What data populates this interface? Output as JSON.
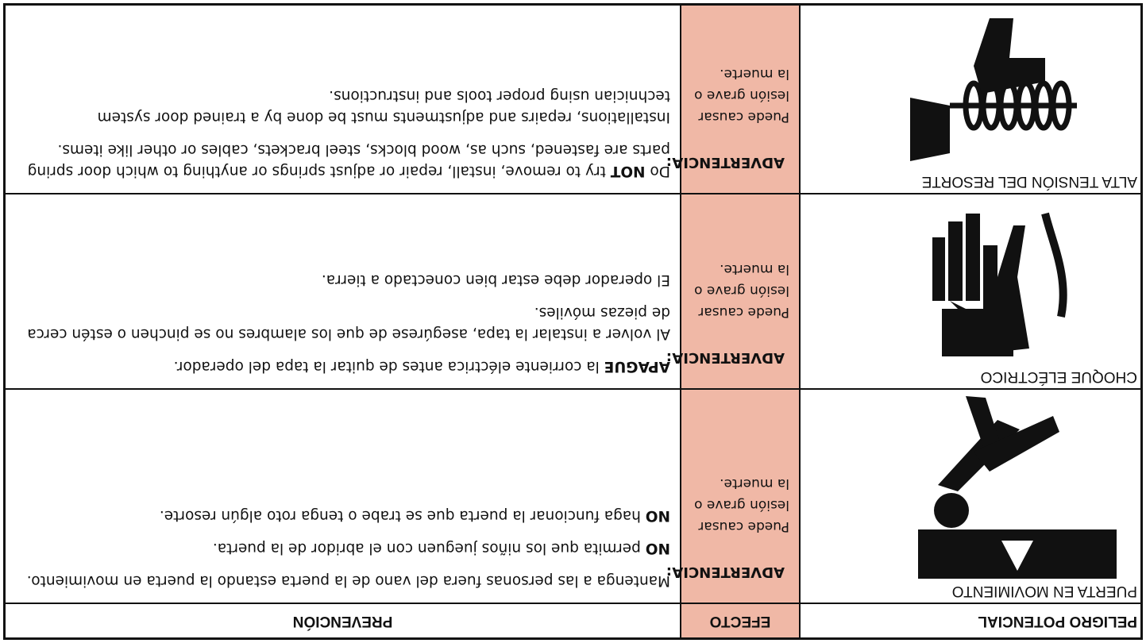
{
  "header": {
    "hazard": "PELIGRO POTENCIAL",
    "effect": "EFECTO",
    "prevention": "PREVENCIÓN"
  },
  "rows": [
    {
      "hazard": "PUERTA EN MOVIMIENTO",
      "effect_title": "ADVERTENCIA:",
      "effect_text": "Puede causar lesión grave o la muerte.",
      "prevention": [
        [
          {
            "text": "Mantenga a las personas fuera del vano de la puerta estando la puerta en movimiento."
          }
        ],
        [
          {
            "text": "NO",
            "strong": true
          },
          {
            "text": " permita que los niños jueguen con el abridor de la puerta."
          }
        ],
        [
          {
            "text": "NO",
            "strong": true
          },
          {
            "text": " haga funcionar la puerta que se trabe o tenga roto algún resorte."
          }
        ]
      ]
    },
    {
      "hazard": "CHOQUE ELÉCTRICO",
      "effect_title": "ADVERTENCIA:",
      "effect_text": "Puede causar lesión grave o la muerte.",
      "prevention": [
        [
          {
            "text": "APAGUE",
            "strong": true
          },
          {
            "text": " la corriente eléctrica antes de quitar la tapa del operador."
          }
        ],
        [
          {
            "text": "Al volver a instalar la tapa, asegúrese de que los alambres no se pinchen o estén cerca de piezas móviles."
          }
        ],
        [
          {
            "text": "El operador debe estar bien conectado a tierra."
          }
        ]
      ]
    },
    {
      "hazard": "ALTA TENSIÓN DEL RESORTE",
      "effect_title": "ADVERTENCIA:",
      "effect_text": "Puede causar lesión grave o la muerte.",
      "prevention": [
        [
          {
            "text": "Do "
          },
          {
            "text": "NOT",
            "strong": true
          },
          {
            "text": " try to remove, install, repair or adjust springs or anything to which door spring parts are fastened, such as, wood blocks, steel brackets, cables or other like items."
          }
        ],
        [
          {
            "text": "Installations, repairs and adjustments must be done by a trained door system technician using proper tools and instructions."
          }
        ]
      ]
    }
  ]
}
